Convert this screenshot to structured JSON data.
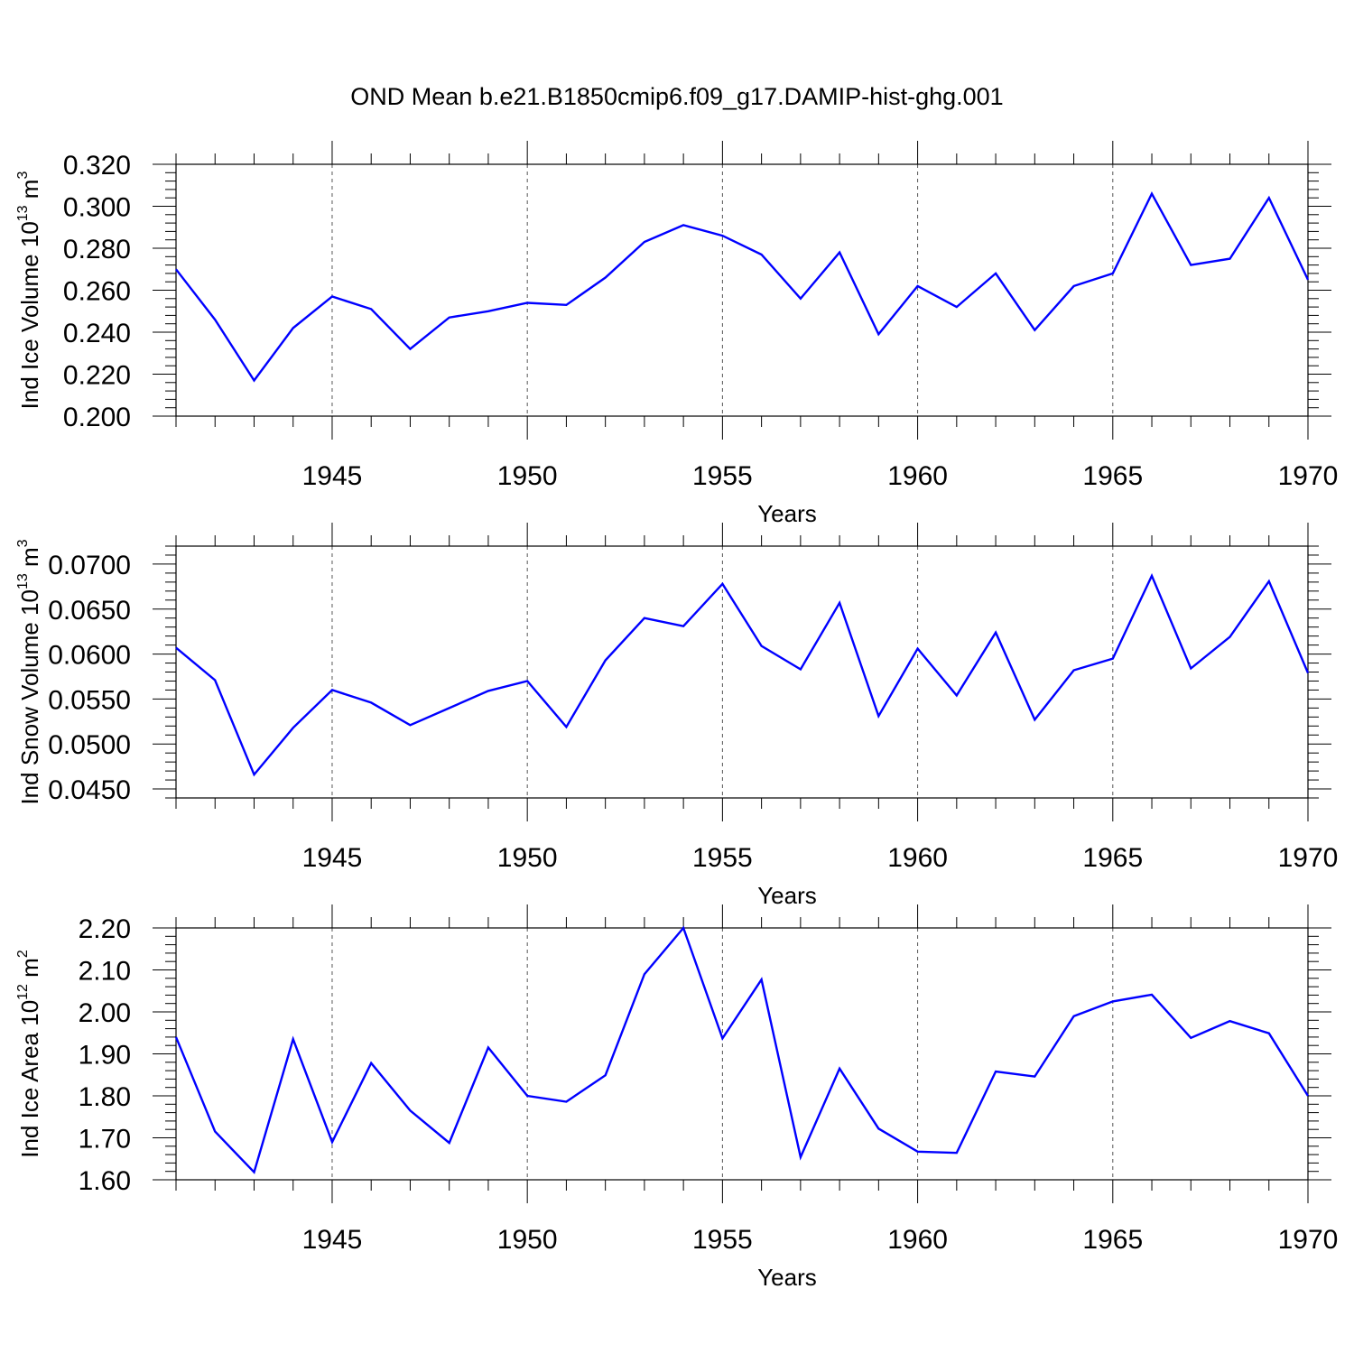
{
  "title": "OND Mean b.e21.B1850cmip6.f09_g17.DAMIP-hist-ghg.001",
  "colors": {
    "series": "#0000ff",
    "axis": "#000000",
    "grid": "#555555"
  },
  "chart_data": [
    {
      "type": "line",
      "title": "OND Mean b.e21.B1850cmip6.f09_g17.DAMIP-hist-ghg.001",
      "xlabel": "Years",
      "ylabel": {
        "text": "Ind Ice Volume 10",
        "exponent": "13",
        "unit": " m",
        "unit_exponent": "3"
      },
      "xlim": [
        1941,
        1970
      ],
      "ylim": [
        0.2,
        0.32
      ],
      "x_ticks": [
        1945,
        1950,
        1955,
        1960,
        1965,
        1970
      ],
      "x_tick_labels": [
        "1945",
        "1950",
        "1955",
        "1960",
        "1965",
        "1970"
      ],
      "y_ticks": [
        0.2,
        0.22,
        0.24,
        0.26,
        0.28,
        0.3,
        0.32
      ],
      "y_tick_labels": [
        "0.200",
        "0.220",
        "0.240",
        "0.260",
        "0.280",
        "0.300",
        "0.320"
      ],
      "grid": "dashed vertical at major x ticks",
      "x": [
        1941,
        1942,
        1943,
        1944,
        1945,
        1946,
        1947,
        1948,
        1949,
        1950,
        1951,
        1952,
        1953,
        1954,
        1955,
        1956,
        1957,
        1958,
        1959,
        1960,
        1961,
        1962,
        1963,
        1964,
        1965,
        1966,
        1967,
        1968,
        1969,
        1970
      ],
      "values": [
        0.27,
        0.246,
        0.217,
        0.242,
        0.257,
        0.251,
        0.232,
        0.247,
        0.25,
        0.254,
        0.253,
        0.266,
        0.283,
        0.291,
        0.286,
        0.277,
        0.256,
        0.278,
        0.239,
        0.262,
        0.252,
        0.268,
        0.241,
        0.262,
        0.268,
        0.306,
        0.272,
        0.275,
        0.304,
        0.265
      ]
    },
    {
      "type": "line",
      "xlabel": "Years",
      "ylabel": {
        "text": "Ind Snow Volume 10",
        "exponent": "13",
        "unit": " m",
        "unit_exponent": "3"
      },
      "xlim": [
        1941,
        1970
      ],
      "ylim": [
        0.044,
        0.072
      ],
      "x_ticks": [
        1945,
        1950,
        1955,
        1960,
        1965,
        1970
      ],
      "x_tick_labels": [
        "1945",
        "1950",
        "1955",
        "1960",
        "1965",
        "1970"
      ],
      "y_ticks": [
        0.045,
        0.05,
        0.055,
        0.06,
        0.065,
        0.07
      ],
      "y_tick_labels": [
        "0.0450",
        "0.0500",
        "0.0550",
        "0.0600",
        "0.0650",
        "0.0700"
      ],
      "grid": "dashed vertical at major x ticks",
      "x": [
        1941,
        1942,
        1943,
        1944,
        1945,
        1946,
        1947,
        1948,
        1949,
        1950,
        1951,
        1952,
        1953,
        1954,
        1955,
        1956,
        1957,
        1958,
        1959,
        1960,
        1961,
        1962,
        1963,
        1964,
        1965,
        1966,
        1967,
        1968,
        1969,
        1970
      ],
      "values": [
        0.0607,
        0.0571,
        0.0466,
        0.0518,
        0.056,
        0.0546,
        0.0521,
        0.054,
        0.0559,
        0.057,
        0.0519,
        0.0593,
        0.064,
        0.0631,
        0.0678,
        0.0609,
        0.0583,
        0.0657,
        0.0531,
        0.0606,
        0.0554,
        0.0624,
        0.0527,
        0.0582,
        0.0595,
        0.0687,
        0.0584,
        0.0619,
        0.0681,
        0.0579
      ]
    },
    {
      "type": "line",
      "xlabel": "Years",
      "ylabel": {
        "text": "Ind Ice Area 10",
        "exponent": "12",
        "unit": " m",
        "unit_exponent": "2"
      },
      "xlim": [
        1941,
        1970
      ],
      "ylim": [
        1.6,
        2.2
      ],
      "x_ticks": [
        1945,
        1950,
        1955,
        1960,
        1965,
        1970
      ],
      "x_tick_labels": [
        "1945",
        "1950",
        "1955",
        "1960",
        "1965",
        "1970"
      ],
      "y_ticks": [
        1.6,
        1.7,
        1.8,
        1.9,
        2.0,
        2.1,
        2.2
      ],
      "y_tick_labels": [
        "1.60",
        "1.70",
        "1.80",
        "1.90",
        "2.00",
        "2.10",
        "2.20"
      ],
      "grid": "dashed vertical at major x ticks",
      "x": [
        1941,
        1942,
        1943,
        1944,
        1945,
        1946,
        1947,
        1948,
        1949,
        1950,
        1951,
        1952,
        1953,
        1954,
        1955,
        1956,
        1957,
        1958,
        1959,
        1960,
        1961,
        1962,
        1963,
        1964,
        1965,
        1966,
        1967,
        1968,
        1969,
        1970
      ],
      "values": [
        1.94,
        1.715,
        1.618,
        1.935,
        1.69,
        1.878,
        1.765,
        1.688,
        1.915,
        1.8,
        1.786,
        1.849,
        2.09,
        2.2,
        1.937,
        2.077,
        1.654,
        1.865,
        1.722,
        1.667,
        1.664,
        1.858,
        1.846,
        1.99,
        2.025,
        2.041,
        1.938,
        1.978,
        1.949,
        1.8
      ]
    }
  ]
}
